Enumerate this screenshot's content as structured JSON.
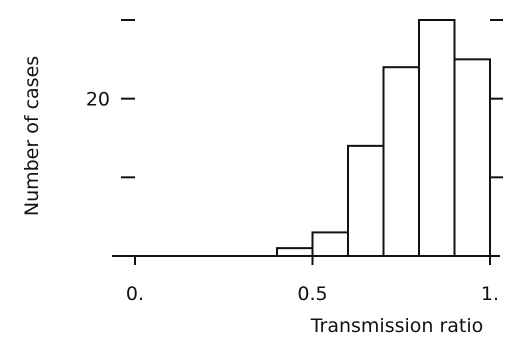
{
  "chart_data": {
    "type": "bar",
    "title": "",
    "xlabel": "Transmission ratio",
    "ylabel": "Number of cases",
    "bin_edges": [
      0.4,
      0.5,
      0.6,
      0.7,
      0.8,
      0.9,
      1.0
    ],
    "values": [
      1,
      3,
      14,
      24,
      30,
      25
    ],
    "xlim": [
      0.0,
      1.0
    ],
    "ylim": [
      0,
      30
    ],
    "x_ticks": [
      {
        "value": 0.0,
        "label": "0."
      },
      {
        "value": 0.5,
        "label": "0.5"
      },
      {
        "value": 1.0,
        "label": "1."
      }
    ],
    "y_ticks": [
      {
        "value": 10,
        "label": ""
      },
      {
        "value": 20,
        "label": "20"
      },
      {
        "value": 30,
        "label": ""
      }
    ],
    "grid": false
  }
}
